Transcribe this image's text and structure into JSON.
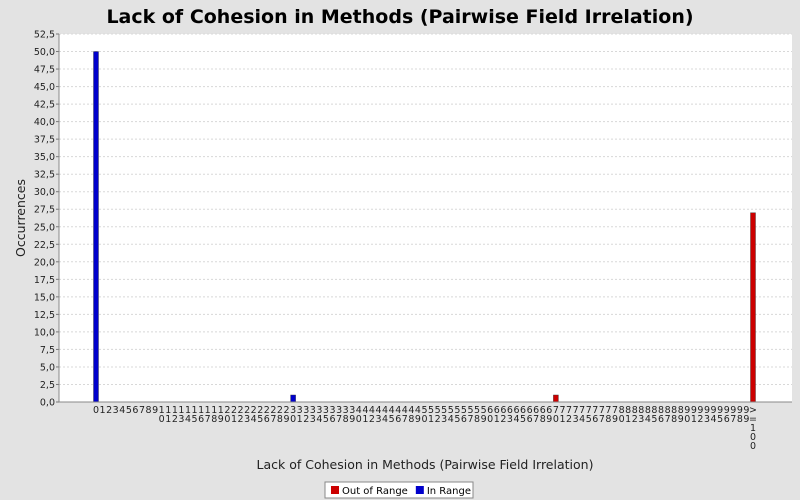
{
  "chart_data": {
    "type": "bar",
    "title": "Lack of Cohesion in Methods (Pairwise Field Irrelation)",
    "xlabel": "Lack of Cohesion in Methods (Pairwise Field Irrelation)",
    "ylabel": "Occurrences",
    "ylim": [
      0,
      52.5
    ],
    "ytick_step": 2.5,
    "grid": true,
    "legend_position": "bottom-center",
    "categories": [
      "0",
      "1",
      "2",
      "3",
      "4",
      "5",
      "6",
      "7",
      "8",
      "9",
      "10",
      "11",
      "12",
      "13",
      "14",
      "15",
      "16",
      "17",
      "18",
      "19",
      "20",
      "21",
      "22",
      "23",
      "24",
      "25",
      "26",
      "27",
      "28",
      "29",
      "30",
      "31",
      "32",
      "33",
      "34",
      "35",
      "36",
      "37",
      "38",
      "39",
      "40",
      "41",
      "42",
      "43",
      "44",
      "45",
      "46",
      "47",
      "48",
      "49",
      "50",
      "51",
      "52",
      "53",
      "54",
      "55",
      "56",
      "57",
      "58",
      "59",
      "60",
      "61",
      "62",
      "63",
      "64",
      "65",
      "66",
      "67",
      "68",
      "69",
      "70",
      "71",
      "72",
      "73",
      "74",
      "75",
      "76",
      "77",
      "78",
      "79",
      "80",
      "81",
      "82",
      "83",
      "84",
      "85",
      "86",
      "87",
      "88",
      "89",
      "90",
      "91",
      "92",
      "93",
      "94",
      "95",
      "96",
      "97",
      "98",
      "99",
      ">=100"
    ],
    "series": [
      {
        "name": "Out of Range",
        "color": "#cc0000",
        "points": [
          {
            "category": "70",
            "value": 1
          },
          {
            "category": ">=100",
            "value": 27
          }
        ]
      },
      {
        "name": "In Range",
        "color": "#0000cc",
        "points": [
          {
            "category": "0",
            "value": 50
          },
          {
            "category": "30",
            "value": 1
          }
        ]
      }
    ]
  }
}
